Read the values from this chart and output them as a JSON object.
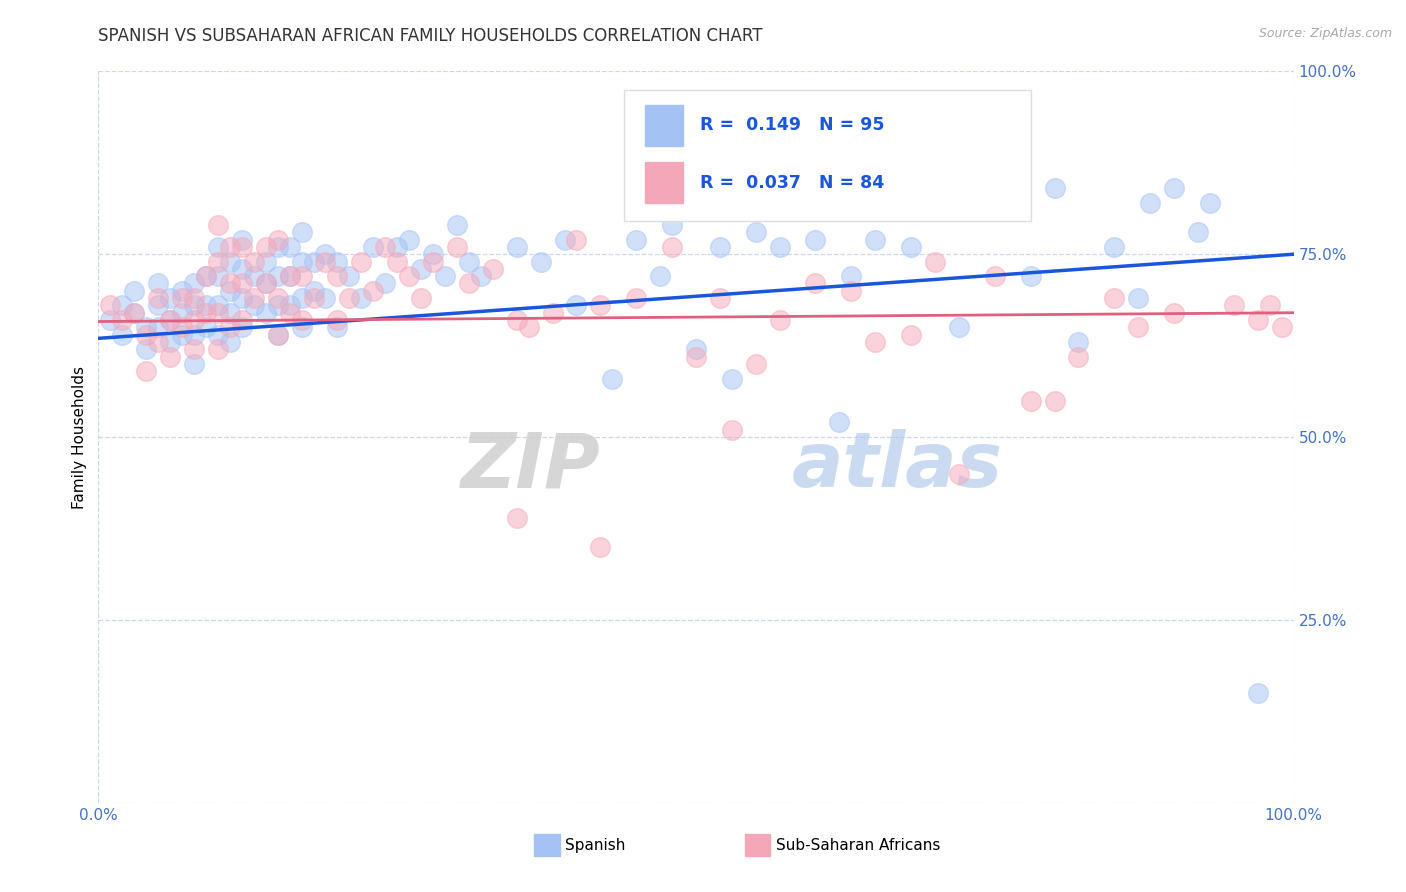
{
  "title": "SPANISH VS SUBSAHARAN AFRICAN FAMILY HOUSEHOLDS CORRELATION CHART",
  "source": "Source: ZipAtlas.com",
  "ylabel": "Family Households",
  "xlim": [
    0.0,
    1.0
  ],
  "ylim": [
    0.0,
    1.0
  ],
  "xticks": [
    0.0,
    0.25,
    0.5,
    0.75,
    1.0
  ],
  "yticks": [
    0.0,
    0.25,
    0.5,
    0.75,
    1.0
  ],
  "xticklabels": [
    "0.0%",
    "",
    "",
    "",
    "100.0%"
  ],
  "yticklabels": [
    "",
    "25.0%",
    "50.0%",
    "75.0%",
    "100.0%"
  ],
  "color_blue": "#a4c2f4",
  "color_pink": "#f4a7b9",
  "line_blue": "#1a56db",
  "line_pink": "#e06080",
  "watermark": "ZIPatlas",
  "blue_scatter": [
    [
      0.01,
      0.66
    ],
    [
      0.02,
      0.64
    ],
    [
      0.02,
      0.68
    ],
    [
      0.03,
      0.67
    ],
    [
      0.03,
      0.7
    ],
    [
      0.04,
      0.65
    ],
    [
      0.04,
      0.62
    ],
    [
      0.05,
      0.68
    ],
    [
      0.05,
      0.65
    ],
    [
      0.05,
      0.71
    ],
    [
      0.06,
      0.66
    ],
    [
      0.06,
      0.63
    ],
    [
      0.06,
      0.69
    ],
    [
      0.07,
      0.7
    ],
    [
      0.07,
      0.67
    ],
    [
      0.07,
      0.64
    ],
    [
      0.08,
      0.71
    ],
    [
      0.08,
      0.68
    ],
    [
      0.08,
      0.64
    ],
    [
      0.08,
      0.6
    ],
    [
      0.09,
      0.72
    ],
    [
      0.09,
      0.68
    ],
    [
      0.09,
      0.65
    ],
    [
      0.1,
      0.76
    ],
    [
      0.1,
      0.72
    ],
    [
      0.1,
      0.68
    ],
    [
      0.1,
      0.64
    ],
    [
      0.11,
      0.74
    ],
    [
      0.11,
      0.7
    ],
    [
      0.11,
      0.67
    ],
    [
      0.11,
      0.63
    ],
    [
      0.12,
      0.77
    ],
    [
      0.12,
      0.73
    ],
    [
      0.12,
      0.69
    ],
    [
      0.12,
      0.65
    ],
    [
      0.13,
      0.72
    ],
    [
      0.13,
      0.68
    ],
    [
      0.14,
      0.74
    ],
    [
      0.14,
      0.71
    ],
    [
      0.14,
      0.67
    ],
    [
      0.15,
      0.76
    ],
    [
      0.15,
      0.72
    ],
    [
      0.15,
      0.68
    ],
    [
      0.15,
      0.64
    ],
    [
      0.16,
      0.76
    ],
    [
      0.16,
      0.72
    ],
    [
      0.16,
      0.68
    ],
    [
      0.17,
      0.78
    ],
    [
      0.17,
      0.74
    ],
    [
      0.17,
      0.69
    ],
    [
      0.17,
      0.65
    ],
    [
      0.18,
      0.74
    ],
    [
      0.18,
      0.7
    ],
    [
      0.19,
      0.75
    ],
    [
      0.19,
      0.69
    ],
    [
      0.2,
      0.74
    ],
    [
      0.2,
      0.65
    ],
    [
      0.21,
      0.72
    ],
    [
      0.22,
      0.69
    ],
    [
      0.23,
      0.76
    ],
    [
      0.24,
      0.71
    ],
    [
      0.25,
      0.76
    ],
    [
      0.26,
      0.77
    ],
    [
      0.27,
      0.73
    ],
    [
      0.28,
      0.75
    ],
    [
      0.29,
      0.72
    ],
    [
      0.3,
      0.79
    ],
    [
      0.31,
      0.74
    ],
    [
      0.32,
      0.72
    ],
    [
      0.35,
      0.76
    ],
    [
      0.37,
      0.74
    ],
    [
      0.39,
      0.77
    ],
    [
      0.4,
      0.68
    ],
    [
      0.43,
      0.58
    ],
    [
      0.45,
      0.77
    ],
    [
      0.47,
      0.72
    ],
    [
      0.48,
      0.79
    ],
    [
      0.5,
      0.62
    ],
    [
      0.52,
      0.76
    ],
    [
      0.53,
      0.58
    ],
    [
      0.55,
      0.78
    ],
    [
      0.57,
      0.76
    ],
    [
      0.6,
      0.77
    ],
    [
      0.62,
      0.52
    ],
    [
      0.63,
      0.72
    ],
    [
      0.65,
      0.77
    ],
    [
      0.68,
      0.76
    ],
    [
      0.7,
      0.82
    ],
    [
      0.72,
      0.65
    ],
    [
      0.78,
      0.72
    ],
    [
      0.8,
      0.84
    ],
    [
      0.82,
      0.63
    ],
    [
      0.85,
      0.76
    ],
    [
      0.87,
      0.69
    ],
    [
      0.88,
      0.82
    ],
    [
      0.9,
      0.84
    ],
    [
      0.92,
      0.78
    ],
    [
      0.93,
      0.82
    ],
    [
      0.97,
      0.15
    ]
  ],
  "pink_scatter": [
    [
      0.01,
      0.68
    ],
    [
      0.02,
      0.66
    ],
    [
      0.03,
      0.67
    ],
    [
      0.04,
      0.64
    ],
    [
      0.04,
      0.59
    ],
    [
      0.05,
      0.69
    ],
    [
      0.05,
      0.63
    ],
    [
      0.06,
      0.66
    ],
    [
      0.06,
      0.61
    ],
    [
      0.07,
      0.69
    ],
    [
      0.07,
      0.65
    ],
    [
      0.08,
      0.69
    ],
    [
      0.08,
      0.66
    ],
    [
      0.08,
      0.62
    ],
    [
      0.09,
      0.72
    ],
    [
      0.09,
      0.67
    ],
    [
      0.1,
      0.79
    ],
    [
      0.1,
      0.74
    ],
    [
      0.1,
      0.67
    ],
    [
      0.1,
      0.62
    ],
    [
      0.11,
      0.76
    ],
    [
      0.11,
      0.71
    ],
    [
      0.11,
      0.65
    ],
    [
      0.12,
      0.76
    ],
    [
      0.12,
      0.71
    ],
    [
      0.12,
      0.66
    ],
    [
      0.13,
      0.74
    ],
    [
      0.13,
      0.69
    ],
    [
      0.14,
      0.76
    ],
    [
      0.14,
      0.71
    ],
    [
      0.15,
      0.77
    ],
    [
      0.15,
      0.69
    ],
    [
      0.15,
      0.64
    ],
    [
      0.16,
      0.72
    ],
    [
      0.16,
      0.67
    ],
    [
      0.17,
      0.72
    ],
    [
      0.17,
      0.66
    ],
    [
      0.18,
      0.69
    ],
    [
      0.19,
      0.74
    ],
    [
      0.2,
      0.72
    ],
    [
      0.2,
      0.66
    ],
    [
      0.21,
      0.69
    ],
    [
      0.22,
      0.74
    ],
    [
      0.23,
      0.7
    ],
    [
      0.24,
      0.76
    ],
    [
      0.25,
      0.74
    ],
    [
      0.26,
      0.72
    ],
    [
      0.27,
      0.69
    ],
    [
      0.28,
      0.74
    ],
    [
      0.3,
      0.76
    ],
    [
      0.31,
      0.71
    ],
    [
      0.33,
      0.73
    ],
    [
      0.35,
      0.66
    ],
    [
      0.36,
      0.65
    ],
    [
      0.38,
      0.67
    ],
    [
      0.4,
      0.77
    ],
    [
      0.42,
      0.68
    ],
    [
      0.45,
      0.69
    ],
    [
      0.48,
      0.76
    ],
    [
      0.5,
      0.61
    ],
    [
      0.52,
      0.69
    ],
    [
      0.53,
      0.51
    ],
    [
      0.55,
      0.6
    ],
    [
      0.57,
      0.66
    ],
    [
      0.6,
      0.71
    ],
    [
      0.63,
      0.7
    ],
    [
      0.65,
      0.63
    ],
    [
      0.68,
      0.64
    ],
    [
      0.7,
      0.74
    ],
    [
      0.72,
      0.45
    ],
    [
      0.75,
      0.72
    ],
    [
      0.78,
      0.55
    ],
    [
      0.8,
      0.55
    ],
    [
      0.82,
      0.61
    ],
    [
      0.85,
      0.69
    ],
    [
      0.87,
      0.65
    ],
    [
      0.9,
      0.67
    ],
    [
      0.95,
      0.68
    ],
    [
      0.97,
      0.66
    ],
    [
      0.98,
      0.68
    ],
    [
      0.99,
      0.65
    ],
    [
      0.35,
      0.39
    ],
    [
      0.42,
      0.35
    ]
  ],
  "blue_line": {
    "x0": 0.0,
    "y0": 0.635,
    "x1": 1.0,
    "y1": 0.75
  },
  "pink_line": {
    "x0": 0.0,
    "y0": 0.658,
    "x1": 1.0,
    "y1": 0.67
  },
  "title_fontsize": 12,
  "axis_tick_color": "#4472c4",
  "axis_tick_fontsize": 11,
  "ylabel_fontsize": 11,
  "grid_color": "#c8d8f0",
  "watermark_color_zip": "#cccccc",
  "watermark_color_atlas": "#a8c4e8",
  "watermark_fontsize": 55
}
